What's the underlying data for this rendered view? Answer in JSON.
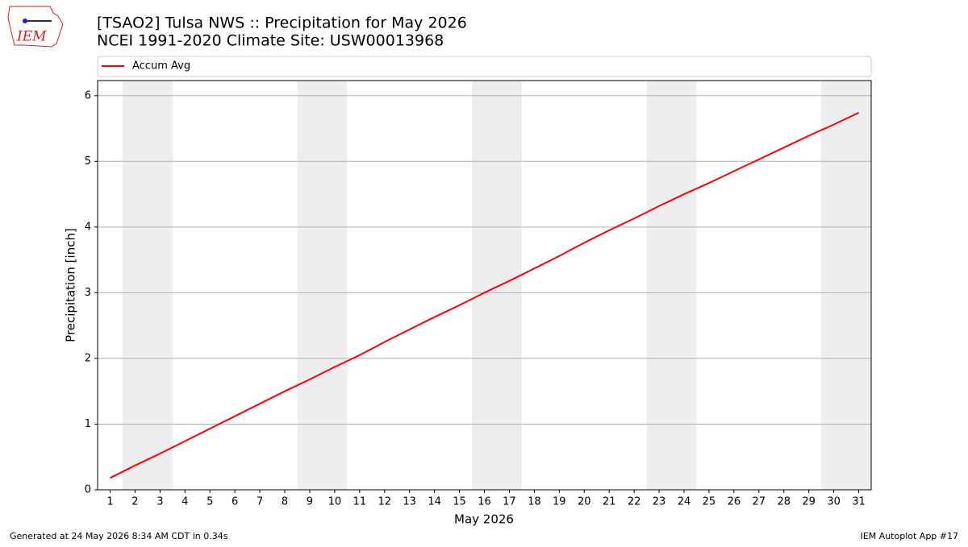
{
  "chart_data": {
    "type": "line",
    "title": "[TSAO2] Tulsa NWS :: Precipitation for May 2026",
    "subtitle": "NCEI 1991-2020 Climate Site: USW00013968",
    "x_label": "May 2026",
    "y_label": "Precipitation [inch]",
    "x": [
      1,
      2,
      3,
      4,
      5,
      6,
      7,
      8,
      9,
      10,
      11,
      12,
      13,
      14,
      15,
      16,
      17,
      18,
      19,
      20,
      21,
      22,
      23,
      24,
      25,
      26,
      27,
      28,
      29,
      30,
      31
    ],
    "series": [
      {
        "name": "Accum Avg",
        "color": "#ff0000",
        "values": [
          0.18,
          0.37,
          0.55,
          0.74,
          0.93,
          1.12,
          1.31,
          1.5,
          1.68,
          1.87,
          2.05,
          2.25,
          2.44,
          2.63,
          2.81,
          3.0,
          3.18,
          3.37,
          3.56,
          3.76,
          3.95,
          4.13,
          4.32,
          4.5,
          4.67,
          4.85,
          5.03,
          5.21,
          5.39,
          5.56,
          5.74
        ]
      }
    ],
    "shaded_spans": [
      [
        1.5,
        3.5
      ],
      [
        8.5,
        10.5
      ],
      [
        15.5,
        17.5
      ],
      [
        22.5,
        24.5
      ],
      [
        29.5,
        31.5
      ]
    ],
    "shade_color": "#eeeeee",
    "xlim": [
      0.5,
      31.5
    ],
    "xticks": [
      1,
      2,
      3,
      4,
      5,
      6,
      7,
      8,
      9,
      10,
      11,
      12,
      13,
      14,
      15,
      16,
      17,
      18,
      19,
      20,
      21,
      22,
      23,
      24,
      25,
      26,
      27,
      28,
      29,
      30,
      31
    ],
    "ylim": [
      0,
      6.23
    ],
    "yticks": [
      0,
      1,
      2,
      3,
      4,
      5,
      6
    ],
    "grid": true,
    "legend": "top"
  },
  "logo": "IEM",
  "footer": {
    "left": "Generated at 24 May 2026 8:34 AM CDT in 0.34s",
    "right": "IEM Autoplot App #17"
  }
}
